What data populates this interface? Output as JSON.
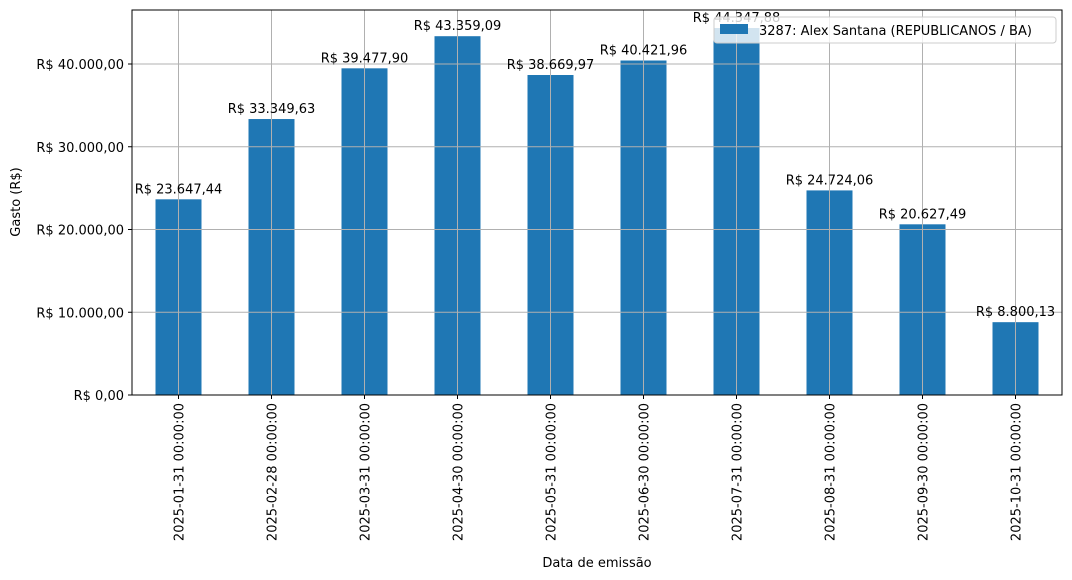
{
  "chart_data": {
    "type": "bar",
    "title": "",
    "xlabel": "Data de emissão",
    "ylabel": "Gasto (R$)",
    "ylim": [
      0,
      46526
    ],
    "grid": true,
    "legend_position": "top-right",
    "bar_color": "#1f77b4",
    "categories": [
      "2025-01-31 00:00:00",
      "2025-02-28 00:00:00",
      "2025-03-31 00:00:00",
      "2025-04-30 00:00:00",
      "2025-05-31 00:00:00",
      "2025-06-30 00:00:00",
      "2025-07-31 00:00:00",
      "2025-08-31 00:00:00",
      "2025-09-30 00:00:00",
      "2025-10-31 00:00:00"
    ],
    "series": [
      {
        "name": "3287: Alex Santana (REPUBLICANOS / BA)",
        "values": [
          23647.44,
          33349.63,
          39477.9,
          43359.09,
          38669.97,
          40421.96,
          44347.88,
          24724.06,
          20627.49,
          8800.13
        ],
        "data_labels": [
          "R$ 23.647,44",
          "R$ 33.349,63",
          "R$ 39.477,90",
          "R$ 43.359,09",
          "R$ 38.669,97",
          "R$ 40.421,96",
          "R$ 44.347,88",
          "R$ 24.724,06",
          "R$ 20.627,49",
          "R$ 8.800,13"
        ]
      }
    ],
    "yticks": [
      0,
      10000,
      20000,
      30000,
      40000
    ],
    "ytick_labels": [
      "R$ 0,00",
      "R$ 10.000,00",
      "R$ 20.000,00",
      "R$ 30.000,00",
      "R$ 40.000,00"
    ]
  }
}
